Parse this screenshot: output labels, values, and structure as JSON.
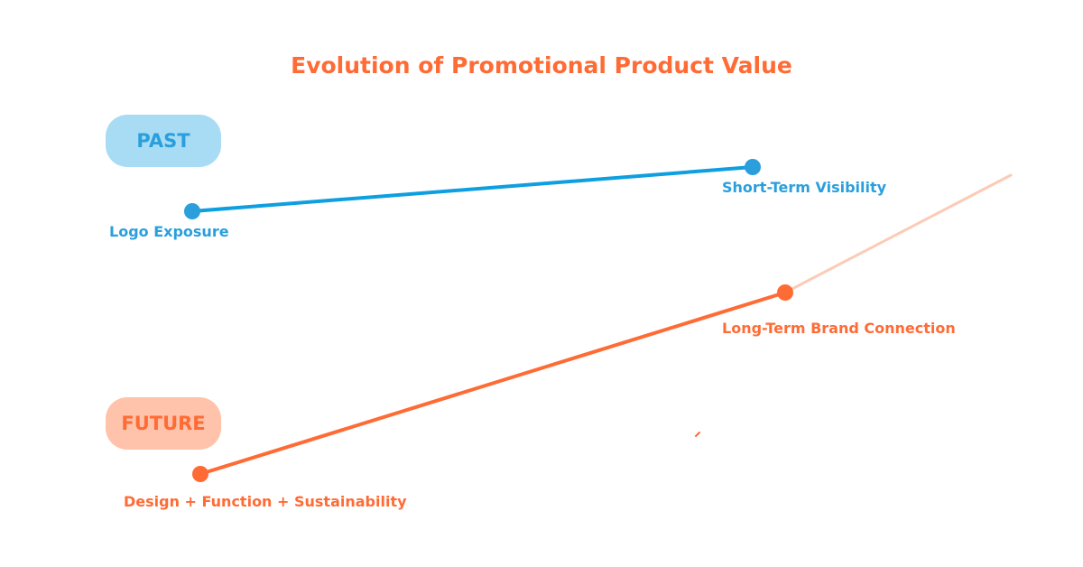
{
  "title": "Evolution of Promotional Product Value",
  "colors": {
    "past": "#0e9fe0",
    "past_pill_bg": "#a8dcf4",
    "past_text": "#2a9fdc",
    "future": "#ff6b35",
    "future_pill_bg": "#ffc2aa",
    "future_extension": "#fccbb6"
  },
  "past": {
    "label": "PAST",
    "start_label": "Logo Exposure",
    "end_label": "Short-Term Visibility"
  },
  "future": {
    "label": "FUTURE",
    "start_label": "Design + Function + Sustainability",
    "end_label": "Long-Term Brand Connection"
  }
}
